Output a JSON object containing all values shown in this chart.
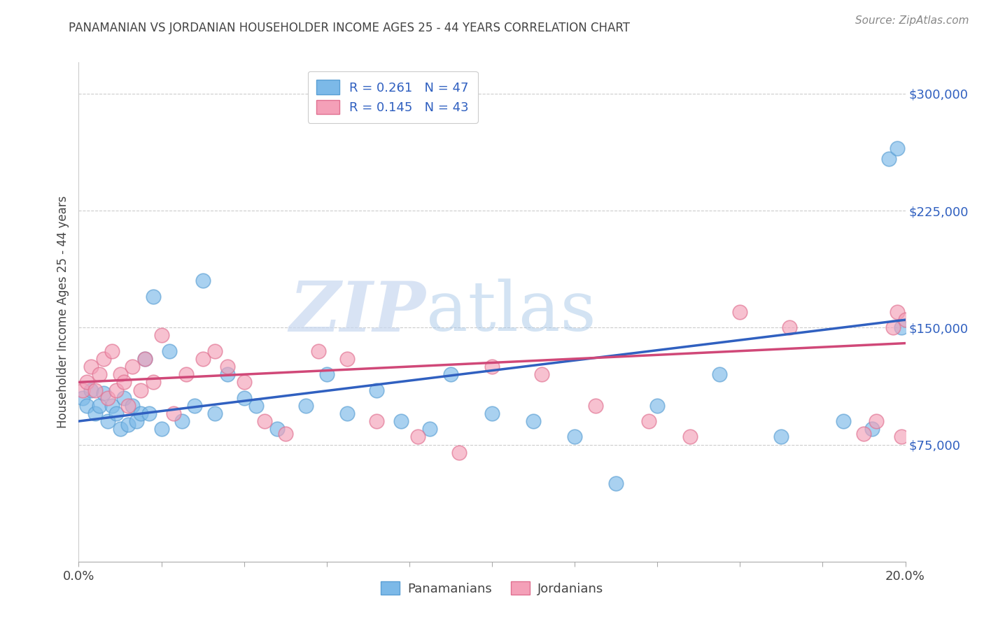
{
  "title": "PANAMANIAN VS JORDANIAN HOUSEHOLDER INCOME AGES 25 - 44 YEARS CORRELATION CHART",
  "source": "Source: ZipAtlas.com",
  "ylabel": "Householder Income Ages 25 - 44 years",
  "xlim": [
    0.0,
    0.2
  ],
  "ylim": [
    0,
    320000
  ],
  "yticks": [
    75000,
    150000,
    225000,
    300000
  ],
  "ytick_labels": [
    "$75,000",
    "$150,000",
    "$225,000",
    "$300,000"
  ],
  "xticks": [
    0.0,
    0.02,
    0.04,
    0.06,
    0.08,
    0.1,
    0.12,
    0.14,
    0.16,
    0.18,
    0.2
  ],
  "xtick_labels_show": [
    "0.0%",
    "",
    "",
    "",
    "",
    "",
    "",
    "",
    "",
    "",
    "20.0%"
  ],
  "panamanian_R": 0.261,
  "panamanian_N": 47,
  "jordanian_R": 0.145,
  "jordanian_N": 43,
  "blue_color": "#7cb9e8",
  "blue_edge_color": "#5a9fd4",
  "blue_line_color": "#3060c0",
  "pink_color": "#f4a0b8",
  "pink_edge_color": "#e07090",
  "pink_line_color": "#d04878",
  "legend_text_color": "#3060c0",
  "watermark_zip": "ZIP",
  "watermark_atlas": "atlas",
  "background_color": "#ffffff",
  "grid_color": "#cccccc",
  "pan_x": [
    0.001,
    0.002,
    0.003,
    0.004,
    0.005,
    0.006,
    0.007,
    0.008,
    0.009,
    0.01,
    0.011,
    0.012,
    0.013,
    0.014,
    0.015,
    0.016,
    0.017,
    0.018,
    0.02,
    0.022,
    0.025,
    0.028,
    0.03,
    0.033,
    0.036,
    0.04,
    0.043,
    0.048,
    0.055,
    0.06,
    0.065,
    0.072,
    0.078,
    0.085,
    0.09,
    0.1,
    0.11,
    0.12,
    0.13,
    0.14,
    0.155,
    0.17,
    0.185,
    0.192,
    0.196,
    0.198,
    0.199
  ],
  "pan_y": [
    105000,
    100000,
    110000,
    95000,
    100000,
    108000,
    90000,
    100000,
    95000,
    85000,
    105000,
    88000,
    100000,
    90000,
    95000,
    130000,
    95000,
    170000,
    85000,
    135000,
    90000,
    100000,
    180000,
    95000,
    120000,
    105000,
    100000,
    85000,
    100000,
    120000,
    95000,
    110000,
    90000,
    85000,
    120000,
    95000,
    90000,
    80000,
    50000,
    100000,
    120000,
    80000,
    90000,
    85000,
    258000,
    265000,
    150000
  ],
  "jor_x": [
    0.001,
    0.002,
    0.003,
    0.004,
    0.005,
    0.006,
    0.007,
    0.008,
    0.009,
    0.01,
    0.011,
    0.012,
    0.013,
    0.015,
    0.016,
    0.018,
    0.02,
    0.023,
    0.026,
    0.03,
    0.033,
    0.036,
    0.04,
    0.045,
    0.05,
    0.058,
    0.065,
    0.072,
    0.082,
    0.092,
    0.1,
    0.112,
    0.125,
    0.138,
    0.148,
    0.16,
    0.172,
    0.19,
    0.193,
    0.197,
    0.198,
    0.199,
    0.2
  ],
  "jor_y": [
    110000,
    115000,
    125000,
    110000,
    120000,
    130000,
    105000,
    135000,
    110000,
    120000,
    115000,
    100000,
    125000,
    110000,
    130000,
    115000,
    145000,
    95000,
    120000,
    130000,
    135000,
    125000,
    115000,
    90000,
    82000,
    135000,
    130000,
    90000,
    80000,
    70000,
    125000,
    120000,
    100000,
    90000,
    80000,
    160000,
    150000,
    82000,
    90000,
    150000,
    160000,
    80000,
    155000
  ]
}
